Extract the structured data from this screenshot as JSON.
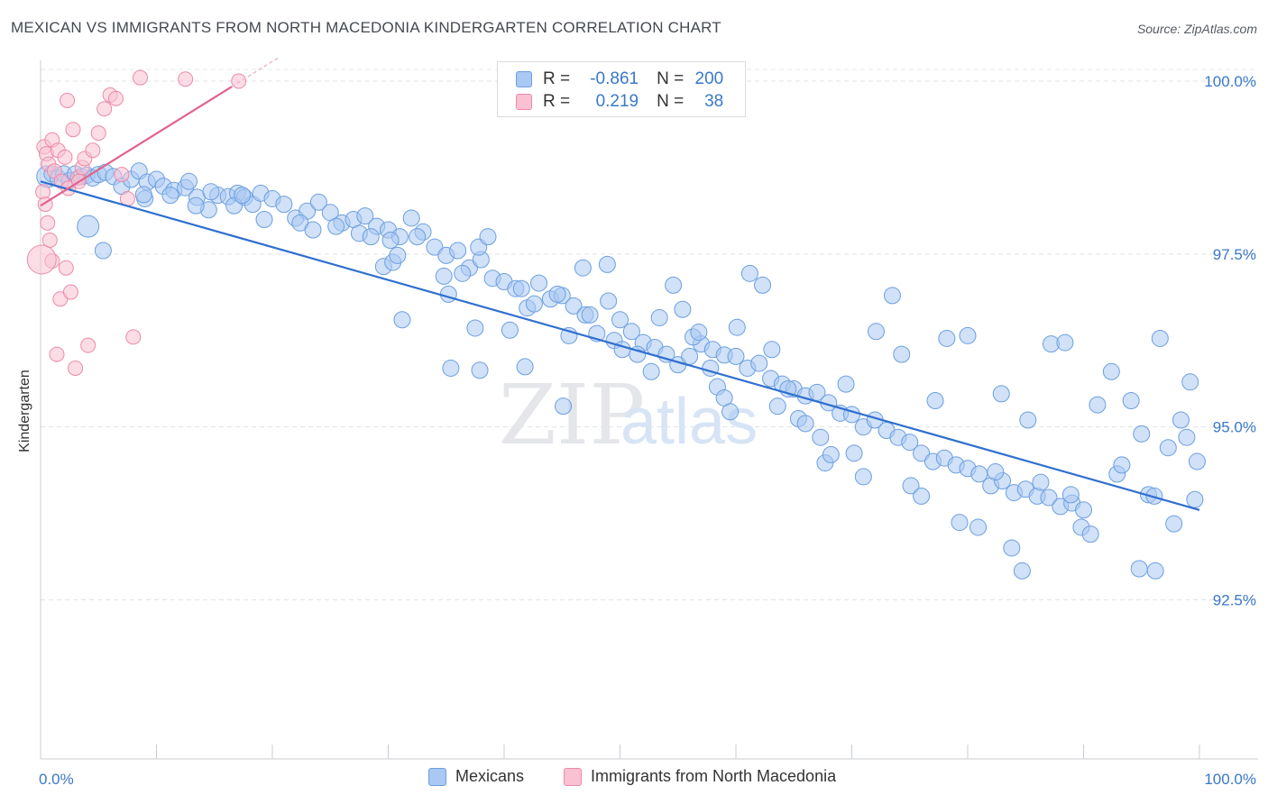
{
  "title": "MEXICAN VS IMMIGRANTS FROM NORTH MACEDONIA KINDERGARTEN CORRELATION CHART",
  "source": "Source: ZipAtlas.com",
  "watermark": {
    "zip": "ZIP",
    "atlas": "atlas"
  },
  "legend": {
    "rows": [
      {
        "r_label": "R =",
        "r_value": "-0.861",
        "n_label": "N =",
        "n_value": "200",
        "color": "#a9c8f2",
        "border": "#6c9fe0"
      },
      {
        "r_label": "R =",
        "r_value": "0.219",
        "n_label": "N =",
        "n_value": "38",
        "color": "#f9c1d1",
        "border": "#ec8aa8"
      }
    ]
  },
  "bottom_legend": {
    "mexicans": "Mexicans",
    "macedonia": "Immigrants from North Macedonia"
  },
  "chart_data": {
    "type": "scatter",
    "title": "MEXICAN VS IMMIGRANTS FROM NORTH MACEDONIA KINDERGARTEN CORRELATION CHART",
    "xlabel": "",
    "ylabel": "Kindergarten",
    "xlim": [
      0,
      100
    ],
    "ylim": [
      90.2,
      100.3
    ],
    "x_tick_labels": {
      "left": "0.0%",
      "right": "100.0%"
    },
    "y_ticks": [
      {
        "value": 100.0,
        "label": "100.0%"
      },
      {
        "value": 97.5,
        "label": "97.5%"
      },
      {
        "value": 95.0,
        "label": "95.0%"
      },
      {
        "value": 92.5,
        "label": "92.5%"
      }
    ],
    "grid": true,
    "colors": {
      "mexicans": "#6c9fe0",
      "mexicans_fill": "#a9c8f2",
      "macedonia": "#ec8aa8",
      "macedonia_fill": "#f9c1d1",
      "blue_line": "#2f6fcf",
      "pink_line": "#e2638d",
      "tick_label": "#3a78c9"
    },
    "series": [
      {
        "name": "Mexicans",
        "trend": {
          "x": [
            0,
            100
          ],
          "y": [
            98.55,
            93.8
          ]
        },
        "points": [
          [
            0.6,
            98.62
          ],
          [
            1.0,
            98.66
          ],
          [
            1.5,
            98.6
          ],
          [
            2.0,
            98.66
          ],
          [
            2.5,
            98.56
          ],
          [
            3.0,
            98.66
          ],
          [
            3.5,
            98.62
          ],
          [
            4.0,
            98.64
          ],
          [
            4.5,
            98.6
          ],
          [
            5.0,
            98.65
          ],
          [
            5.6,
            98.68
          ],
          [
            6.3,
            98.62
          ],
          [
            7.0,
            98.48
          ],
          [
            7.8,
            98.58
          ],
          [
            8.5,
            98.7
          ],
          [
            9.2,
            98.54
          ],
          [
            10.0,
            98.58
          ],
          [
            10.6,
            98.48
          ],
          [
            11.5,
            98.42
          ],
          [
            12.5,
            98.46
          ],
          [
            13.5,
            98.32
          ],
          [
            14.5,
            98.14
          ],
          [
            15.3,
            98.35
          ],
          [
            16.2,
            98.33
          ],
          [
            17.0,
            98.38
          ],
          [
            17.6,
            98.32
          ],
          [
            18.3,
            98.22
          ],
          [
            19.0,
            98.38
          ],
          [
            20.0,
            98.3
          ],
          [
            21.0,
            98.22
          ],
          [
            22.0,
            98.02
          ],
          [
            23.0,
            98.12
          ],
          [
            24.0,
            98.25
          ],
          [
            25.0,
            98.1
          ],
          [
            26.0,
            97.95
          ],
          [
            27.0,
            98.0
          ],
          [
            28.0,
            98.05
          ],
          [
            29.0,
            97.9
          ],
          [
            30.0,
            97.85
          ],
          [
            31.0,
            97.75
          ],
          [
            32.0,
            98.02
          ],
          [
            33.0,
            97.82
          ],
          [
            34.0,
            97.6
          ],
          [
            35.0,
            97.48
          ],
          [
            36.0,
            97.55
          ],
          [
            37.0,
            97.3
          ],
          [
            38.0,
            97.42
          ],
          [
            39.0,
            97.15
          ],
          [
            40.0,
            97.1
          ],
          [
            41.0,
            97.0
          ],
          [
            42.0,
            96.72
          ],
          [
            43.0,
            97.08
          ],
          [
            44.0,
            96.85
          ],
          [
            45.0,
            96.9
          ],
          [
            46.0,
            96.75
          ],
          [
            47.0,
            96.62
          ],
          [
            48.0,
            96.35
          ],
          [
            49.0,
            96.82
          ],
          [
            50.0,
            96.55
          ],
          [
            51.0,
            96.38
          ],
          [
            52.0,
            96.22
          ],
          [
            53.0,
            96.15
          ],
          [
            54.0,
            96.05
          ],
          [
            55.0,
            95.9
          ],
          [
            56.0,
            96.02
          ],
          [
            57.0,
            96.2
          ],
          [
            58.0,
            96.12
          ],
          [
            59.0,
            96.04
          ],
          [
            60.0,
            96.02
          ],
          [
            61.0,
            95.85
          ],
          [
            62.0,
            95.92
          ],
          [
            63.0,
            95.7
          ],
          [
            64.0,
            95.62
          ],
          [
            65.0,
            95.55
          ],
          [
            66.0,
            95.45
          ],
          [
            67.0,
            95.5
          ],
          [
            68.0,
            95.35
          ],
          [
            69.0,
            95.2
          ],
          [
            70.0,
            95.18
          ],
          [
            71.0,
            95.0
          ],
          [
            72.0,
            95.1
          ],
          [
            73.0,
            94.95
          ],
          [
            74.0,
            94.85
          ],
          [
            75.0,
            94.78
          ],
          [
            76.0,
            94.62
          ],
          [
            77.0,
            94.5
          ],
          [
            78.0,
            94.55
          ],
          [
            79.0,
            94.45
          ],
          [
            80.0,
            94.4
          ],
          [
            81.0,
            94.32
          ],
          [
            82.0,
            94.15
          ],
          [
            83.0,
            94.22
          ],
          [
            84.0,
            94.05
          ],
          [
            85.0,
            94.1
          ],
          [
            86.0,
            94.0
          ],
          [
            87.0,
            93.98
          ],
          [
            88.0,
            93.85
          ],
          [
            89.0,
            93.9
          ],
          [
            90.0,
            93.8
          ],
          [
            5.4,
            97.55
          ],
          [
            9.0,
            98.3
          ],
          [
            11.2,
            98.35
          ],
          [
            12.8,
            98.55
          ],
          [
            14.7,
            98.4
          ],
          [
            16.7,
            98.2
          ],
          [
            17.4,
            98.35
          ],
          [
            19.3,
            98.0
          ],
          [
            22.4,
            97.95
          ],
          [
            23.5,
            97.85
          ],
          [
            25.5,
            97.9
          ],
          [
            27.5,
            97.8
          ],
          [
            28.5,
            97.75
          ],
          [
            29.6,
            97.32
          ],
          [
            30.4,
            97.38
          ],
          [
            30.2,
            97.7
          ],
          [
            30.8,
            97.48
          ],
          [
            31.2,
            96.55
          ],
          [
            32.5,
            97.75
          ],
          [
            34.8,
            97.18
          ],
          [
            35.2,
            96.92
          ],
          [
            35.4,
            95.85
          ],
          [
            36.4,
            97.22
          ],
          [
            37.5,
            96.43
          ],
          [
            37.8,
            97.6
          ],
          [
            37.9,
            95.82
          ],
          [
            38.6,
            97.75
          ],
          [
            40.5,
            96.4
          ],
          [
            41.5,
            97.0
          ],
          [
            41.8,
            95.87
          ],
          [
            42.6,
            96.78
          ],
          [
            44.6,
            96.92
          ],
          [
            45.1,
            95.3
          ],
          [
            45.6,
            96.32
          ],
          [
            46.8,
            97.3
          ],
          [
            47.4,
            96.62
          ],
          [
            48.9,
            97.35
          ],
          [
            49.5,
            96.25
          ],
          [
            50.2,
            96.12
          ],
          [
            51.5,
            96.05
          ],
          [
            52.7,
            95.8
          ],
          [
            53.4,
            96.58
          ],
          [
            54.6,
            97.05
          ],
          [
            55.4,
            96.7
          ],
          [
            56.3,
            96.3
          ],
          [
            56.8,
            96.37
          ],
          [
            57.8,
            95.85
          ],
          [
            58.4,
            95.58
          ],
          [
            59.0,
            95.42
          ],
          [
            59.5,
            95.22
          ],
          [
            60.1,
            96.44
          ],
          [
            61.2,
            97.22
          ],
          [
            62.3,
            97.05
          ],
          [
            63.1,
            96.12
          ],
          [
            63.6,
            95.3
          ],
          [
            64.5,
            95.55
          ],
          [
            65.4,
            95.12
          ],
          [
            66.0,
            95.05
          ],
          [
            67.3,
            94.85
          ],
          [
            67.7,
            94.48
          ],
          [
            68.2,
            94.6
          ],
          [
            69.5,
            95.62
          ],
          [
            70.2,
            94.62
          ],
          [
            71.0,
            94.28
          ],
          [
            72.1,
            96.38
          ],
          [
            73.5,
            96.9
          ],
          [
            74.3,
            96.05
          ],
          [
            75.1,
            94.15
          ],
          [
            76.0,
            94.0
          ],
          [
            77.2,
            95.38
          ],
          [
            78.2,
            96.28
          ],
          [
            79.3,
            93.62
          ],
          [
            80.0,
            96.32
          ],
          [
            80.9,
            93.55
          ],
          [
            82.4,
            94.35
          ],
          [
            82.9,
            95.48
          ],
          [
            83.8,
            93.25
          ],
          [
            84.7,
            92.92
          ],
          [
            85.2,
            95.1
          ],
          [
            86.3,
            94.2
          ],
          [
            87.2,
            96.2
          ],
          [
            88.4,
            96.22
          ],
          [
            88.9,
            94.02
          ],
          [
            89.8,
            93.55
          ],
          [
            90.6,
            93.45
          ],
          [
            91.2,
            95.32
          ],
          [
            92.4,
            95.8
          ],
          [
            92.9,
            94.32
          ],
          [
            93.3,
            94.45
          ],
          [
            94.1,
            95.38
          ],
          [
            94.8,
            92.95
          ],
          [
            95.0,
            94.9
          ],
          [
            95.6,
            94.02
          ],
          [
            96.1,
            94.0
          ],
          [
            96.6,
            96.28
          ],
          [
            97.3,
            94.7
          ],
          [
            97.8,
            93.6
          ],
          [
            98.4,
            95.1
          ],
          [
            98.9,
            94.85
          ],
          [
            99.2,
            95.65
          ],
          [
            99.6,
            93.95
          ],
          [
            99.8,
            94.5
          ],
          [
            4.1,
            97.9
          ],
          [
            8.9,
            98.36
          ],
          [
            13.4,
            98.2
          ],
          [
            96.2,
            92.92
          ]
        ]
      },
      {
        "name": "Immigrants from North Macedonia",
        "trend": {
          "x": [
            0,
            16.5
          ],
          "y": [
            98.2,
            99.92
          ]
        },
        "points": [
          [
            0.3,
            99.05
          ],
          [
            0.5,
            98.95
          ],
          [
            0.7,
            98.8
          ],
          [
            1.0,
            99.15
          ],
          [
            1.2,
            98.7
          ],
          [
            1.5,
            99.0
          ],
          [
            1.8,
            98.55
          ],
          [
            2.1,
            98.9
          ],
          [
            2.4,
            98.45
          ],
          [
            2.8,
            99.3
          ],
          [
            3.2,
            98.6
          ],
          [
            3.6,
            98.75
          ],
          [
            0.2,
            98.4
          ],
          [
            0.4,
            98.22
          ],
          [
            0.6,
            97.95
          ],
          [
            0.8,
            97.7
          ],
          [
            1.0,
            97.4
          ],
          [
            1.4,
            96.05
          ],
          [
            1.7,
            96.85
          ],
          [
            2.2,
            97.3
          ],
          [
            2.6,
            96.95
          ],
          [
            3.0,
            95.85
          ],
          [
            3.3,
            98.55
          ],
          [
            3.8,
            98.88
          ],
          [
            4.5,
            99.0
          ],
          [
            5.0,
            99.25
          ],
          [
            5.5,
            99.6
          ],
          [
            6.0,
            99.8
          ],
          [
            6.5,
            99.75
          ],
          [
            7.0,
            98.65
          ],
          [
            7.5,
            98.3
          ],
          [
            8.0,
            96.3
          ],
          [
            8.6,
            100.05
          ],
          [
            12.5,
            100.03
          ],
          [
            17.1,
            100.0
          ],
          [
            0.1,
            97.42
          ],
          [
            2.3,
            99.72
          ],
          [
            4.1,
            96.18
          ]
        ]
      }
    ]
  }
}
